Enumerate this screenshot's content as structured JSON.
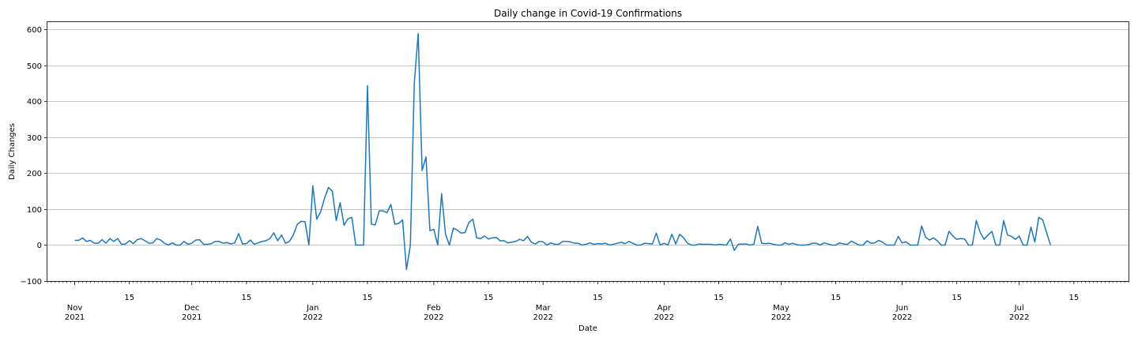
{
  "chart_data": {
    "type": "line",
    "title": "Daily change in Covid-19 Confirmations",
    "xlabel": "Date",
    "ylabel": "Daily Changes",
    "ylim": [
      -100,
      620
    ],
    "xlim": [
      "2021-10-25",
      "2022-07-29"
    ],
    "grid": "horizontal",
    "colors": {
      "line": "#1f77b4",
      "grid": "#b0b0b0"
    },
    "y_ticks": [
      -100,
      0,
      100,
      200,
      300,
      400,
      500,
      600
    ],
    "month_ticks": [
      {
        "date": "2021-11-01",
        "month": "Nov",
        "year": "2021"
      },
      {
        "date": "2021-12-01",
        "month": "Dec",
        "year": "2021"
      },
      {
        "date": "2022-01-01",
        "month": "Jan",
        "year": "2022"
      },
      {
        "date": "2022-02-01",
        "month": "Feb",
        "year": "2022"
      },
      {
        "date": "2022-03-01",
        "month": "Mar",
        "year": "2022"
      },
      {
        "date": "2022-04-01",
        "month": "Apr",
        "year": "2022"
      },
      {
        "date": "2022-05-01",
        "month": "May",
        "year": "2022"
      },
      {
        "date": "2022-06-01",
        "month": "Jun",
        "year": "2022"
      },
      {
        "date": "2022-07-01",
        "month": "Jul",
        "year": "2022"
      }
    ],
    "mid_ticks": [
      {
        "date": "2021-11-15",
        "label": "15"
      },
      {
        "date": "2021-12-15",
        "label": "15"
      },
      {
        "date": "2022-01-15",
        "label": "15"
      },
      {
        "date": "2022-02-15",
        "label": "15"
      },
      {
        "date": "2022-03-15",
        "label": "15"
      },
      {
        "date": "2022-04-15",
        "label": "15"
      },
      {
        "date": "2022-05-15",
        "label": "15"
      },
      {
        "date": "2022-06-15",
        "label": "15"
      },
      {
        "date": "2022-07-15",
        "label": "15"
      }
    ],
    "series": [
      {
        "start_date": "2021-11-01",
        "values": [
          13,
          13,
          20,
          10,
          13,
          5,
          5,
          15,
          5,
          18,
          10,
          18,
          2,
          3,
          12,
          4,
          15,
          18,
          12,
          5,
          6,
          18,
          14,
          5,
          0,
          6,
          0,
          0,
          10,
          2,
          5,
          14,
          15,
          2,
          2,
          4,
          10,
          10,
          5,
          7,
          3,
          6,
          32,
          3,
          4,
          14,
          2,
          6,
          10,
          12,
          18,
          34,
          12,
          28,
          5,
          10,
          28,
          57,
          66,
          65,
          0,
          165,
          72,
          92,
          130,
          160,
          150,
          68,
          118,
          55,
          73,
          77,
          0,
          0,
          0,
          443,
          58,
          56,
          95,
          95,
          90,
          113,
          58,
          60,
          70,
          -68,
          0,
          450,
          588,
          207,
          245,
          40,
          44,
          0,
          143,
          30,
          0,
          47,
          42,
          33,
          35,
          63,
          72,
          20,
          18,
          25,
          17,
          20,
          21,
          12,
          12,
          6,
          8,
          10,
          16,
          12,
          24,
          8,
          3,
          10,
          9,
          0,
          6,
          2,
          2,
          10,
          10,
          9,
          5,
          5,
          0,
          2,
          6,
          2,
          4,
          3,
          5,
          0,
          2,
          5,
          8,
          4,
          10,
          5,
          0,
          0,
          5,
          4,
          3,
          33,
          0,
          5,
          0,
          30,
          3,
          30,
          20,
          5,
          0,
          0,
          3,
          2,
          2,
          2,
          0,
          2,
          1,
          0,
          17,
          -15,
          2,
          3,
          3,
          0,
          2,
          52,
          5,
          4,
          5,
          2,
          0,
          0,
          6,
          2,
          5,
          1,
          0,
          0,
          1,
          5,
          5,
          0,
          6,
          3,
          0,
          0,
          6,
          3,
          2,
          11,
          5,
          0,
          0,
          12,
          5,
          6,
          13,
          8,
          0,
          0,
          0,
          24,
          6,
          9,
          0,
          0,
          0,
          53,
          22,
          14,
          20,
          12,
          0,
          0,
          38,
          25,
          16,
          18,
          17,
          0,
          0,
          68,
          35,
          16,
          28,
          38,
          0,
          0,
          68,
          28,
          24,
          16,
          25,
          0,
          0,
          50,
          8,
          77,
          70,
          35,
          0
        ]
      }
    ]
  }
}
